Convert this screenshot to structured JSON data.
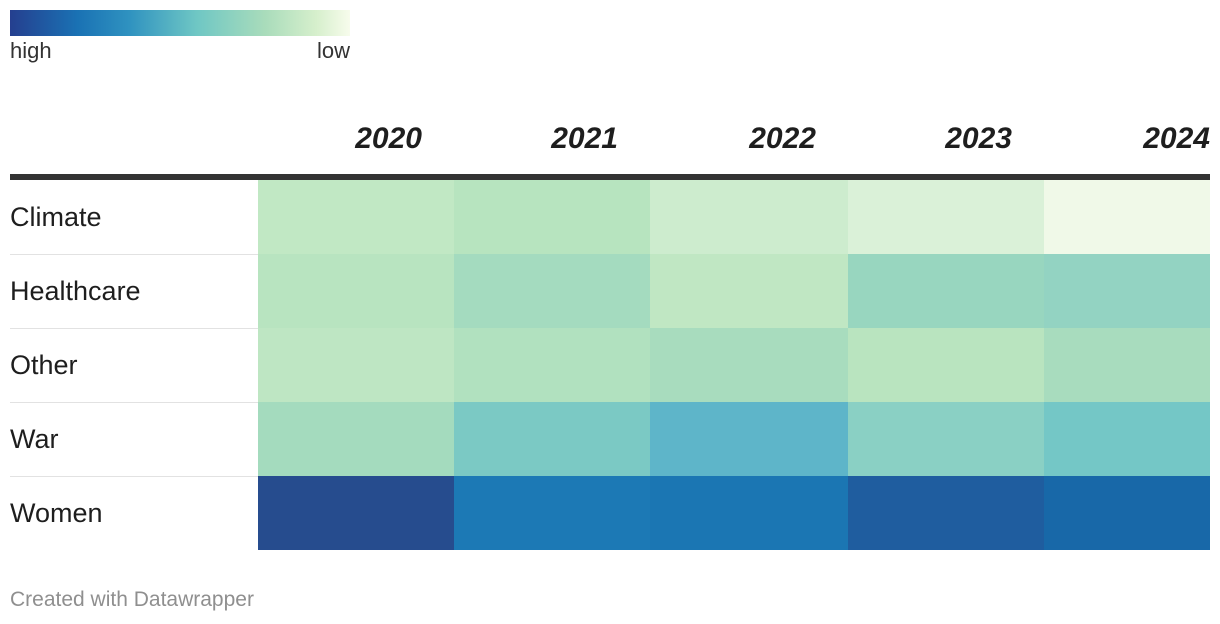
{
  "legend": {
    "high_label": "high",
    "low_label": "low"
  },
  "footer": "Created with Datawrapper",
  "chart_data": {
    "type": "heatmap",
    "columns": [
      "2020",
      "2021",
      "2022",
      "2023",
      "2024"
    ],
    "rows": [
      "Climate",
      "Healthcare",
      "Other",
      "War",
      "Women"
    ],
    "colors": [
      [
        "#c1e8c4",
        "#b7e4bf",
        "#cdecce",
        "#daf1d8",
        "#f0f9e8"
      ],
      [
        "#b8e4c0",
        "#a4dbbf",
        "#c0e7c3",
        "#98d6bf",
        "#93d3c2"
      ],
      [
        "#bee6c3",
        "#b1e1bf",
        "#a8dcbe",
        "#b9e4bf",
        "#a8dcbe"
      ],
      [
        "#a4dbbe",
        "#7bc9c4",
        "#5eb5c9",
        "#8ad0c4",
        "#74c7c6"
      ],
      [
        "#264c8e",
        "#1c79b5",
        "#1b76b3",
        "#1f5d9f",
        "#1868a8"
      ]
    ],
    "legend": {
      "high": "high",
      "low": "low"
    }
  }
}
